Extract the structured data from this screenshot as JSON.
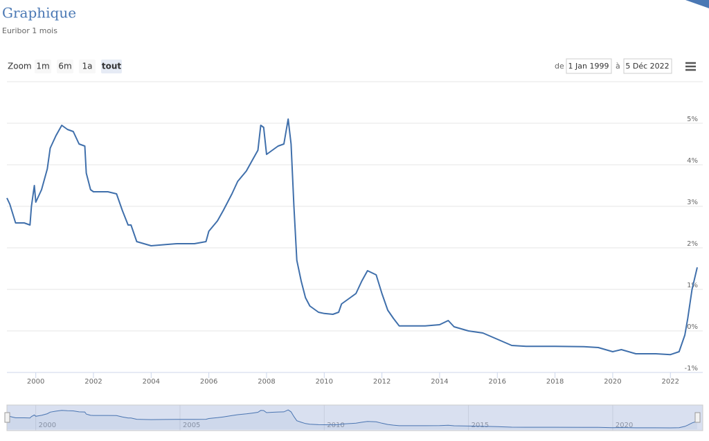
{
  "chart_data": {
    "type": "line",
    "title": "Graphique",
    "subtitle": "Euribor 1 mois",
    "range_selector": {
      "label": "Zoom",
      "buttons": [
        "1m",
        "6m",
        "1a",
        "tout"
      ],
      "selected": 3
    },
    "date_range": {
      "from_label": "de",
      "from": "1 Jan 1999",
      "to_label": "à",
      "to": "5 Déc 2022"
    },
    "color": "#3f6fab",
    "grid": true,
    "xlim": [
      1999.0,
      2022.93
    ],
    "ylim": [
      -1,
      6
    ],
    "xticks": [
      2000,
      2002,
      2004,
      2006,
      2008,
      2010,
      2012,
      2014,
      2016,
      2018,
      2020,
      2022
    ],
    "yticks": [
      {
        "value": -1,
        "label": "-1%"
      },
      {
        "value": 0,
        "label": "0%"
      },
      {
        "value": 1,
        "label": "1%"
      },
      {
        "value": 2,
        "label": "2%"
      },
      {
        "value": 3,
        "label": "3%"
      },
      {
        "value": 4,
        "label": "4%"
      },
      {
        "value": 5,
        "label": "5%"
      }
    ],
    "navigator_xticks": [
      2000,
      2005,
      2010,
      2015,
      2020
    ],
    "series": [
      {
        "name": "Euribor 1 mois",
        "color": "#3f6fab",
        "x": [
          1999.0,
          1999.1,
          1999.3,
          1999.6,
          1999.8,
          1999.85,
          1999.95,
          2000.0,
          2000.2,
          2000.4,
          2000.5,
          2000.7,
          2000.9,
          2001.1,
          2001.3,
          2001.5,
          2001.7,
          2001.75,
          2001.9,
          2002.0,
          2002.5,
          2002.8,
          2003.0,
          2003.2,
          2003.3,
          2003.5,
          2004.0,
          2004.5,
          2004.9,
          2005.0,
          2005.5,
          2005.9,
          2006.0,
          2006.3,
          2006.5,
          2006.8,
          2007.0,
          2007.3,
          2007.5,
          2007.7,
          2007.8,
          2007.9,
          2008.0,
          2008.2,
          2008.4,
          2008.6,
          2008.75,
          2008.85,
          2008.95,
          2009.05,
          2009.2,
          2009.35,
          2009.5,
          2009.8,
          2010.0,
          2010.3,
          2010.5,
          2010.6,
          2010.9,
          2011.1,
          2011.3,
          2011.5,
          2011.8,
          2012.0,
          2012.2,
          2012.4,
          2012.6,
          2013.0,
          2013.5,
          2014.0,
          2014.3,
          2014.5,
          2015.0,
          2015.5,
          2016.0,
          2016.5,
          2017.0,
          2018.0,
          2019.0,
          2019.5,
          2020.0,
          2020.3,
          2020.8,
          2021.5,
          2022.0,
          2022.3,
          2022.5,
          2022.6,
          2022.75,
          2022.93
        ],
        "values": [
          3.2,
          3.05,
          2.6,
          2.6,
          2.55,
          3.0,
          3.5,
          3.1,
          3.4,
          3.9,
          4.4,
          4.7,
          4.95,
          4.85,
          4.8,
          4.5,
          4.45,
          3.8,
          3.4,
          3.35,
          3.35,
          3.3,
          2.9,
          2.55,
          2.55,
          2.15,
          2.05,
          2.08,
          2.1,
          2.1,
          2.1,
          2.15,
          2.4,
          2.65,
          2.9,
          3.3,
          3.6,
          3.85,
          4.1,
          4.35,
          4.95,
          4.9,
          4.25,
          4.35,
          4.45,
          4.5,
          5.1,
          4.5,
          3.0,
          1.7,
          1.2,
          0.8,
          0.6,
          0.45,
          0.42,
          0.4,
          0.45,
          0.65,
          0.8,
          0.9,
          1.2,
          1.45,
          1.35,
          0.9,
          0.5,
          0.3,
          0.12,
          0.12,
          0.12,
          0.15,
          0.25,
          0.1,
          0.0,
          -0.05,
          -0.2,
          -0.35,
          -0.37,
          -0.37,
          -0.38,
          -0.4,
          -0.5,
          -0.45,
          -0.55,
          -0.55,
          -0.57,
          -0.5,
          -0.1,
          0.3,
          1.0,
          1.53
        ]
      }
    ]
  }
}
